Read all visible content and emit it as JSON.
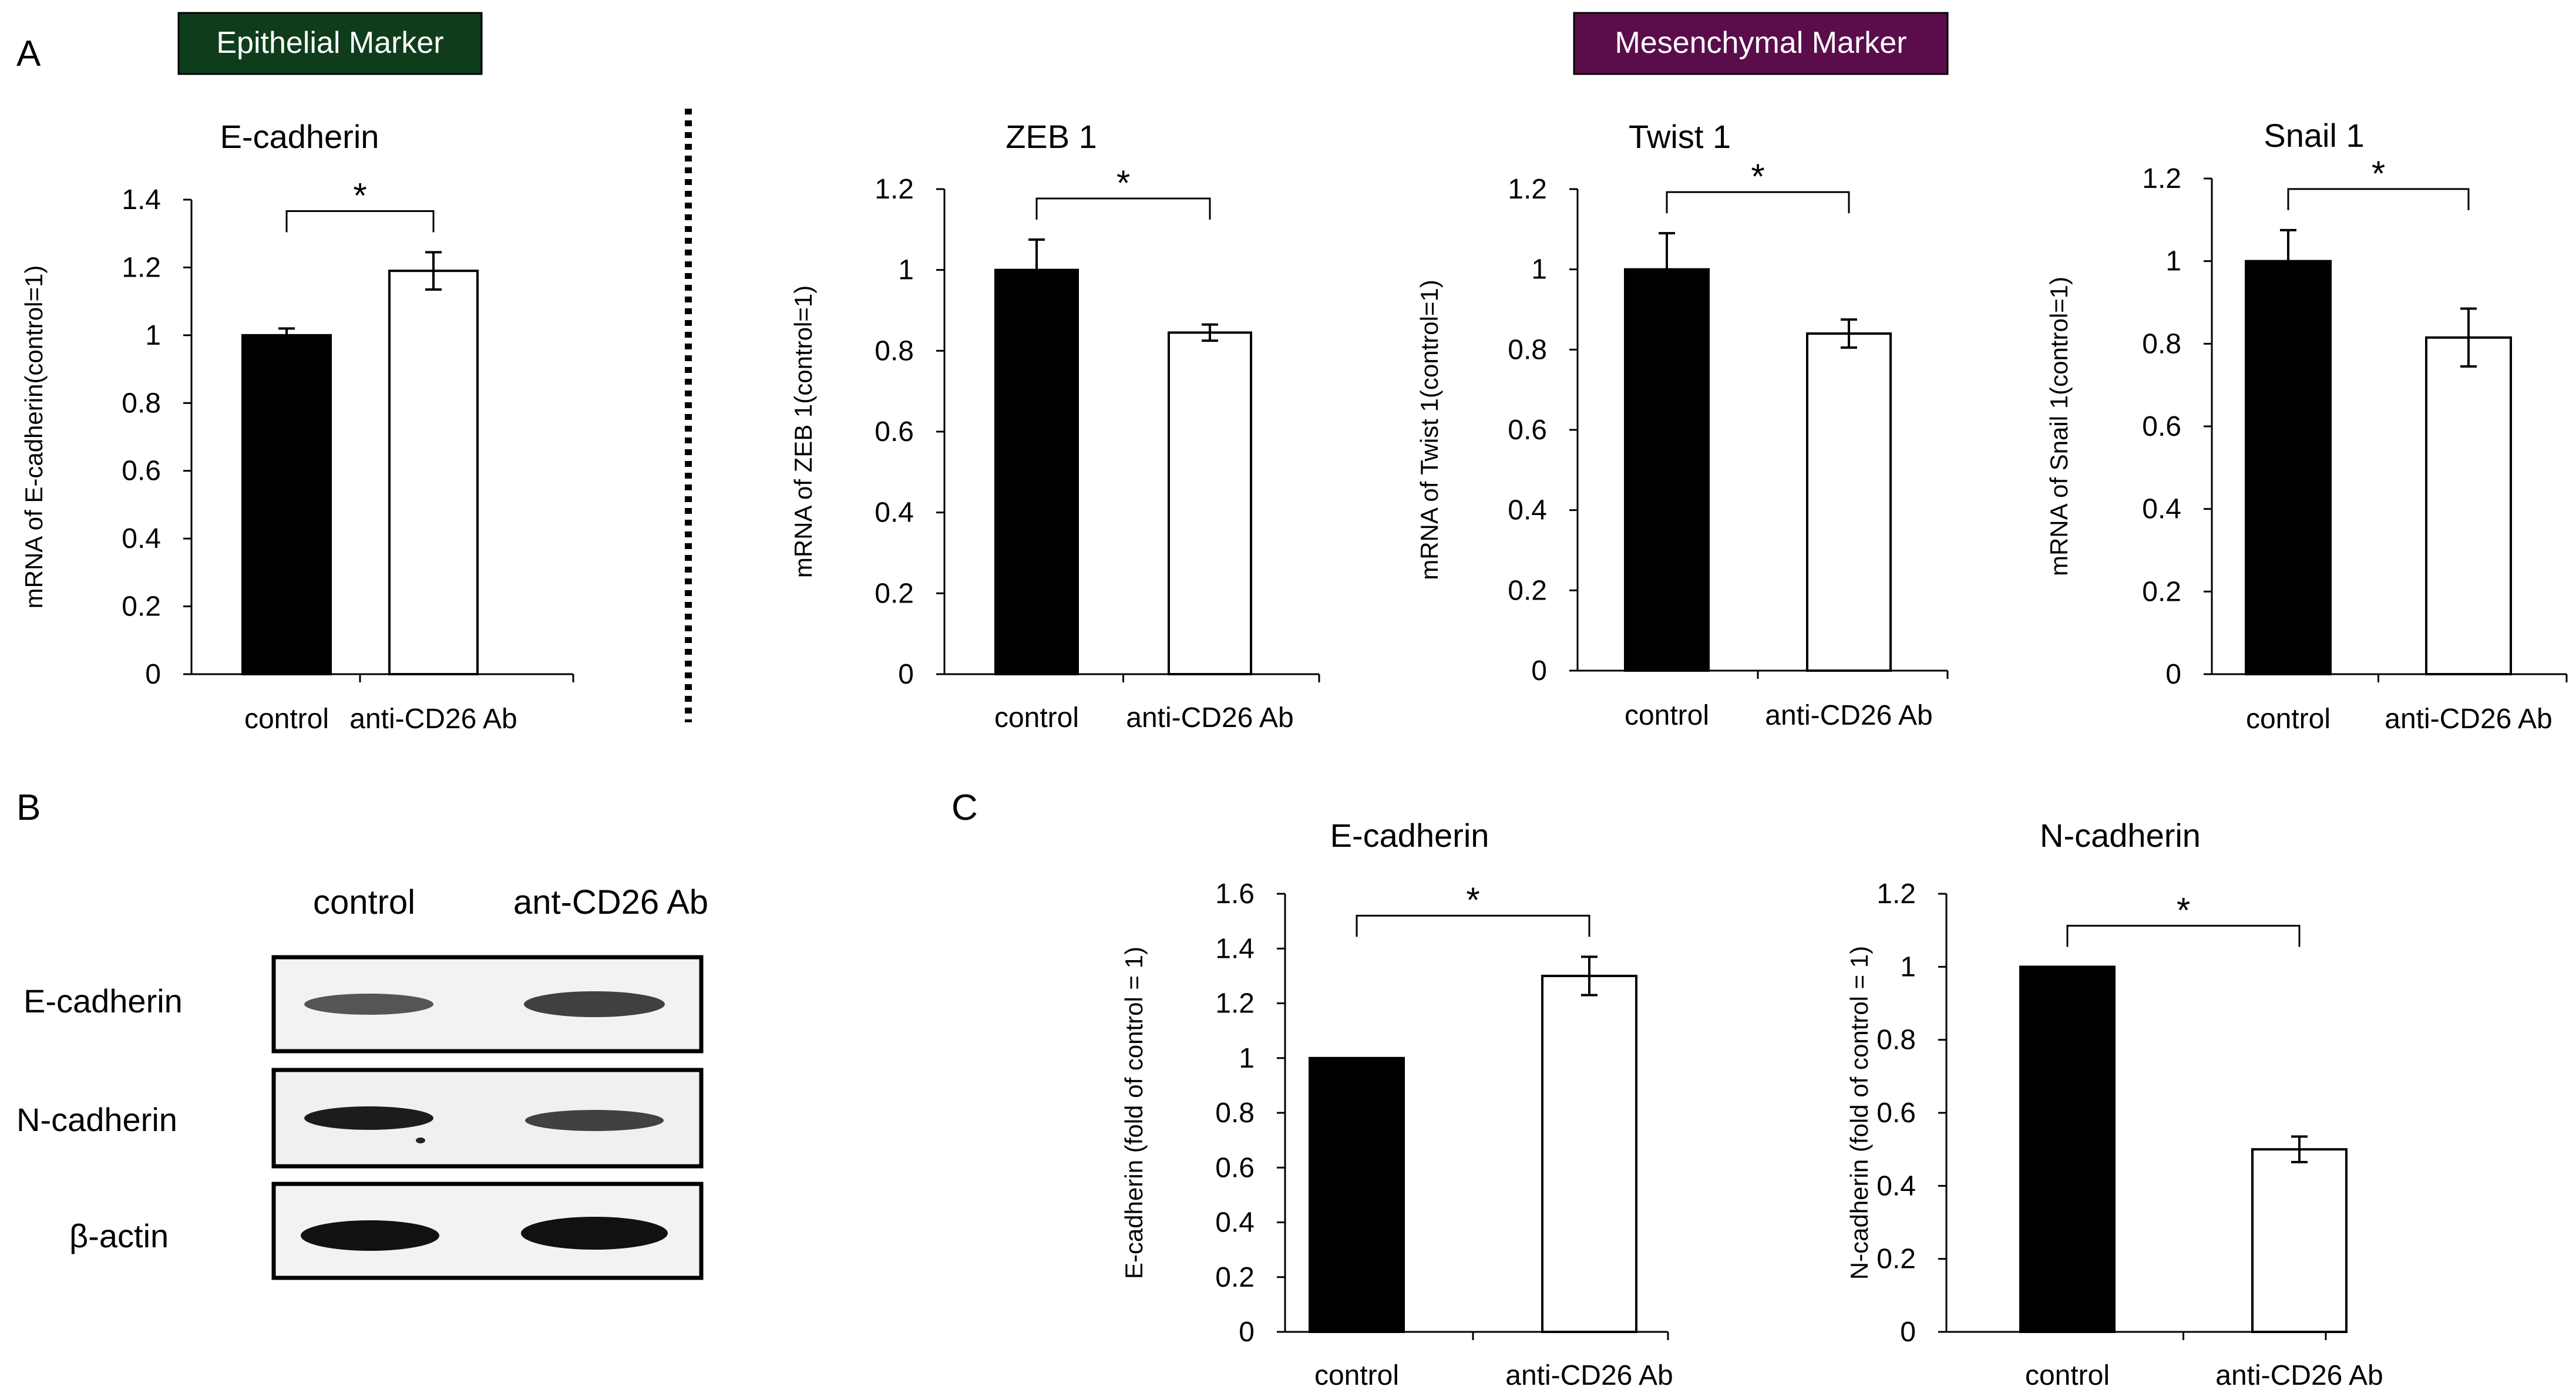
{
  "panels": {
    "a": "A",
    "b": "B",
    "c": "C"
  },
  "markers": {
    "epithelial": {
      "label": "Epithelial Marker",
      "color": "#0f3d1c"
    },
    "mesenchymal": {
      "label": "Mesenchymal Marker",
      "color": "#5a0d4a"
    }
  },
  "colors": {
    "control_bar": "#000000",
    "treated_bar": "#ffffff"
  },
  "chart_data": [
    {
      "id": "a-ecad",
      "type": "bar",
      "title": "E-cadherin",
      "ylabel": "mRNA of E-cadherin(control=1)",
      "categories": [
        "control",
        "anti-CD26 Ab"
      ],
      "values": [
        1.0,
        1.19
      ],
      "errors": [
        0.02,
        0.055
      ],
      "ylim": [
        0,
        1.4
      ],
      "yticks": [
        0,
        0.2,
        0.4,
        0.6,
        0.8,
        1,
        1.2,
        1.4
      ],
      "tick_labels": [
        "0",
        "0.2",
        "0.4",
        "0.6",
        "0.8",
        "1",
        "1.2",
        "1.4"
      ],
      "significance": "*"
    },
    {
      "id": "a-zeb1",
      "type": "bar",
      "title": "ZEB 1",
      "ylabel": "mRNA of ZEB 1(control=1)",
      "categories": [
        "control",
        "anti-CD26 Ab"
      ],
      "values": [
        1.0,
        0.845
      ],
      "errors": [
        0.075,
        0.02
      ],
      "ylim": [
        0,
        1.2
      ],
      "yticks": [
        0,
        0.2,
        0.4,
        0.6,
        0.8,
        1,
        1.2
      ],
      "tick_labels": [
        "0",
        "0.2",
        "0.4",
        "0.6",
        "0.8",
        "1",
        "1.2"
      ],
      "significance": "*"
    },
    {
      "id": "a-twist1",
      "type": "bar",
      "title": "Twist 1",
      "ylabel": "mRNA of Twist 1(control=1)",
      "categories": [
        "control",
        "anti-CD26 Ab"
      ],
      "values": [
        1.0,
        0.84
      ],
      "errors": [
        0.09,
        0.035
      ],
      "ylim": [
        0,
        1.2
      ],
      "yticks": [
        0,
        0.2,
        0.4,
        0.6,
        0.8,
        1,
        1.2
      ],
      "tick_labels": [
        "0",
        "0.2",
        "0.4",
        "0.6",
        "0.8",
        "1",
        "1.2"
      ],
      "significance": "*"
    },
    {
      "id": "a-snail1",
      "type": "bar",
      "title": "Snail 1",
      "ylabel": "mRNA of Snail 1(control=1)",
      "categories": [
        "control",
        "anti-CD26 Ab"
      ],
      "values": [
        1.0,
        0.815
      ],
      "errors": [
        0.075,
        0.07
      ],
      "ylim": [
        0,
        1.2
      ],
      "yticks": [
        0,
        0.2,
        0.4,
        0.6,
        0.8,
        1,
        1.2
      ],
      "tick_labels": [
        "0",
        "0.2",
        "0.4",
        "0.6",
        "0.8",
        "1",
        "1.2"
      ],
      "significance": "*"
    },
    {
      "id": "c-ecad",
      "type": "bar",
      "title": "E-cadherin",
      "ylabel": "E-cadherin (fold of control = 1)",
      "categories": [
        "control",
        "anti-CD26 Ab"
      ],
      "values": [
        1.0,
        1.3
      ],
      "errors": [
        0,
        0.07
      ],
      "ylim": [
        0,
        1.6
      ],
      "yticks": [
        0,
        0.2,
        0.4,
        0.6,
        0.8,
        1,
        1.2,
        1.4,
        1.6
      ],
      "tick_labels": [
        "0",
        "0.2",
        "0.4",
        "0.6",
        "0.8",
        "1",
        "1.2",
        "1.4",
        "1.6"
      ],
      "significance": "*"
    },
    {
      "id": "c-ncad",
      "type": "bar",
      "title": "N-cadherin",
      "ylabel": "N-cadherin (fold of control = 1)",
      "categories": [
        "control",
        "anti-CD26 Ab"
      ],
      "values": [
        1.0,
        0.5
      ],
      "errors": [
        0,
        0.035
      ],
      "ylim": [
        0,
        1.2
      ],
      "yticks": [
        0,
        0.2,
        0.4,
        0.6,
        0.8,
        1,
        1.2
      ],
      "tick_labels": [
        "0",
        "0.2",
        "0.4",
        "0.6",
        "0.8",
        "1",
        "1.2"
      ],
      "significance": "*"
    }
  ],
  "western_blot": {
    "columns": [
      "control",
      "ant-CD26 Ab"
    ],
    "rows": [
      "E-cadherin",
      "N-cadherin",
      "β-actin"
    ]
  }
}
